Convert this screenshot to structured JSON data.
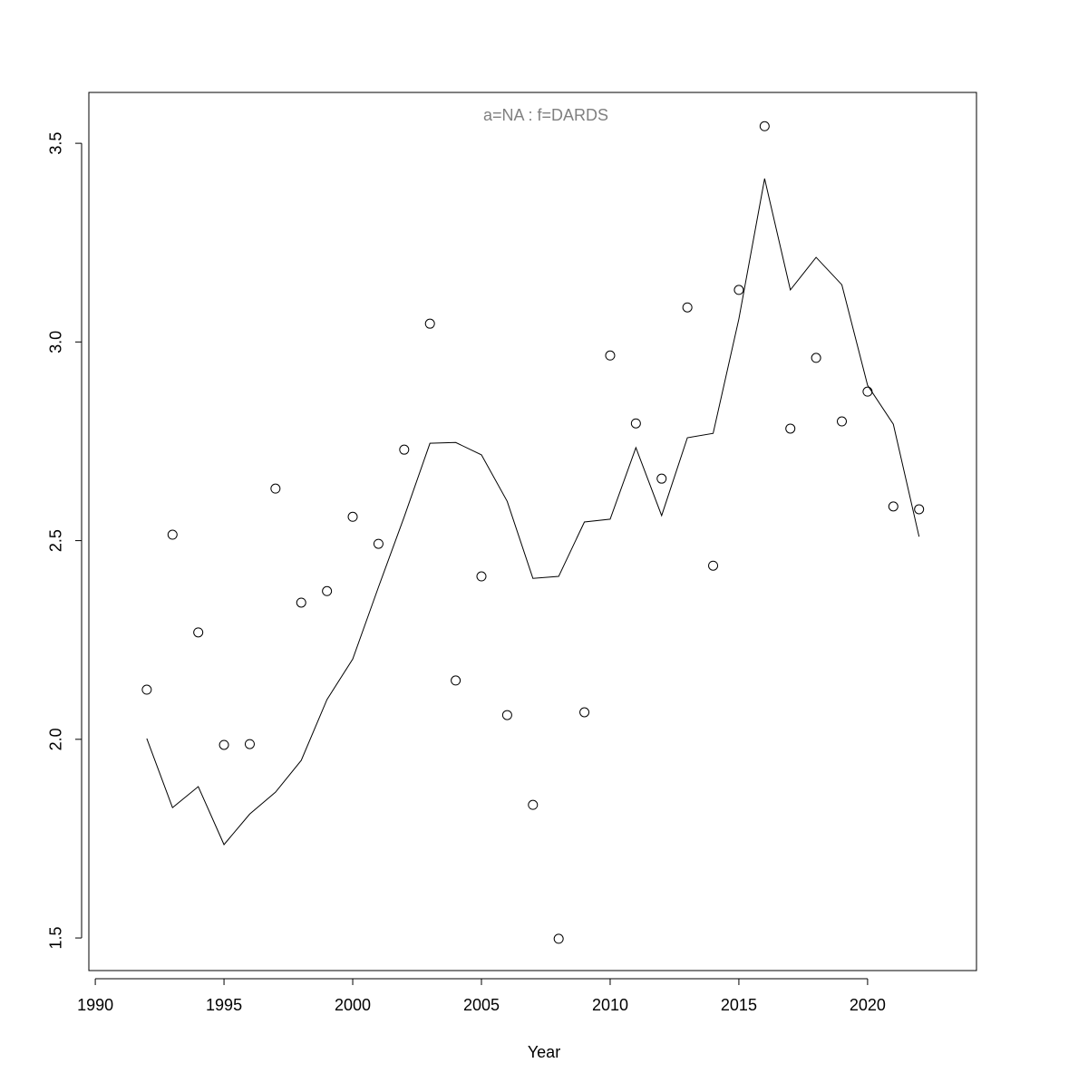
{
  "chart_data": {
    "type": "scatter",
    "title": "a=NA  :  f=DARDS",
    "xlabel": "Year",
    "x": [
      1992,
      1993,
      1994,
      1995,
      1996,
      1997,
      1998,
      1999,
      2000,
      2001,
      2002,
      2003,
      2004,
      2005,
      2006,
      2007,
      2008,
      2009,
      2010,
      2011,
      2012,
      2013,
      2014,
      2015,
      2016,
      2017,
      2018,
      2019,
      2020,
      2021,
      2022
    ],
    "series": [
      {
        "mode": "points",
        "color": "#000000",
        "values": [
          2.125,
          2.515,
          2.269,
          1.986,
          1.988,
          2.631,
          2.344,
          2.373,
          2.56,
          2.492,
          2.729,
          3.046,
          2.148,
          2.41,
          2.061,
          1.835,
          1.498,
          2.068,
          2.966,
          2.795,
          2.656,
          3.087,
          2.437,
          3.131,
          3.543,
          2.782,
          2.96,
          2.8,
          2.875,
          2.586,
          2.579
        ]
      },
      {
        "mode": "line",
        "color": "#000000",
        "values": [
          2.002,
          1.828,
          1.881,
          1.735,
          1.812,
          1.867,
          1.947,
          2.1,
          2.202,
          2.383,
          2.56,
          2.745,
          2.747,
          2.716,
          2.599,
          2.405,
          2.41,
          2.547,
          2.554,
          2.734,
          2.563,
          2.759,
          2.77,
          3.058,
          3.411,
          3.131,
          3.213,
          3.144,
          2.891,
          2.793,
          2.51
        ]
      }
    ],
    "xlim": [
      1989.75,
      2024.23
    ],
    "ylim": [
      1.418,
      3.628
    ],
    "xticks": [
      1990,
      1995,
      2000,
      2005,
      2010,
      2015,
      2020
    ],
    "yticks": [
      1.5,
      {
        "value": 2,
        "label": "2.0"
      },
      2.5,
      {
        "value": 3,
        "label": "3.0"
      },
      3.5
    ],
    "title_color": "#808080"
  }
}
